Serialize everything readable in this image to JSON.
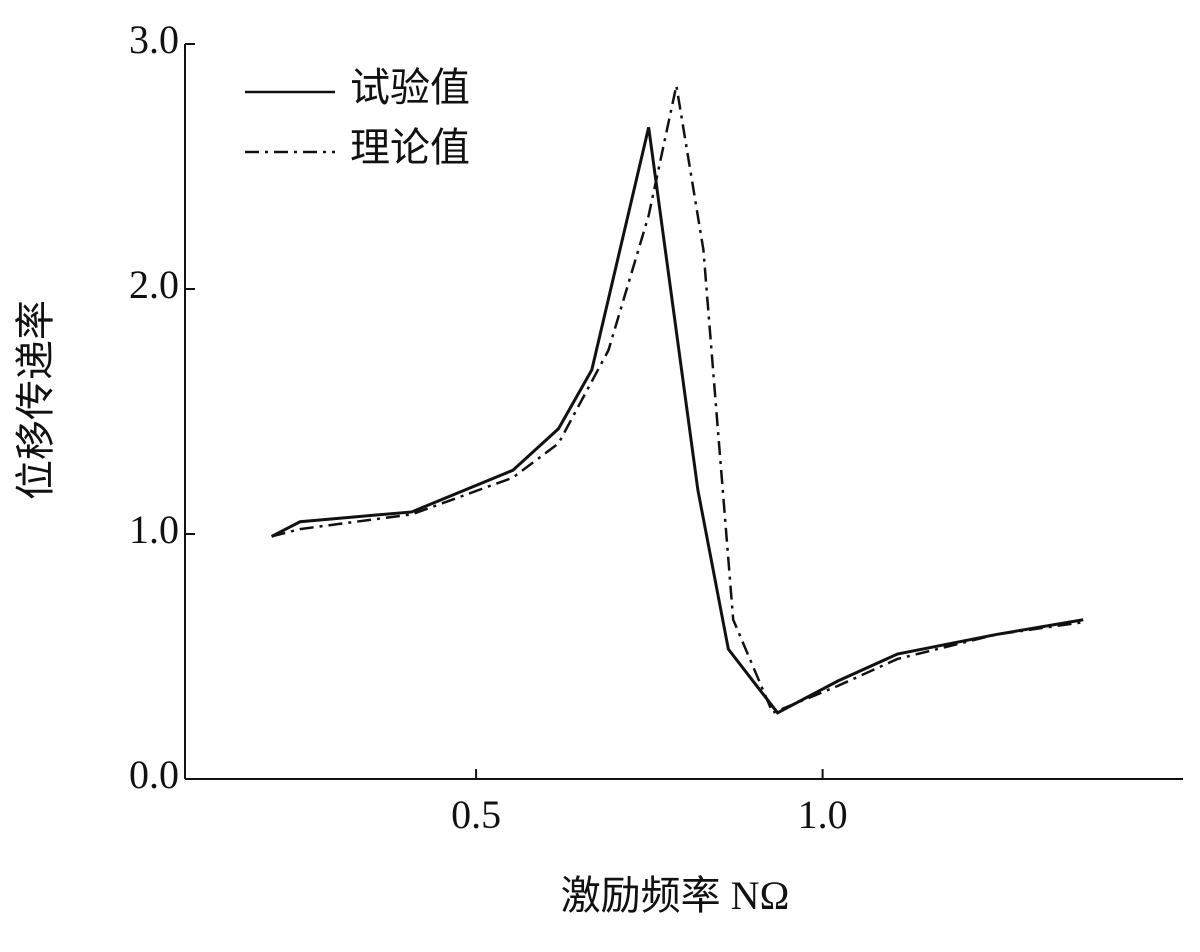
{
  "chart_data": {
    "type": "line",
    "xlabel": "激励频率 NΩ",
    "ylabel": "位移传递率",
    "xlim": [
      0.08,
      1.52
    ],
    "ylim": [
      0,
      3.0
    ],
    "xticks": [
      0.5,
      {
        "value": 1.0,
        "label": "1.0"
      }
    ],
    "yticks": [
      {
        "value": 0,
        "label": "0.0"
      },
      {
        "value": 1.0,
        "label": "1.0"
      },
      {
        "value": 2.0,
        "label": "2.0"
      },
      {
        "value": 3.0,
        "label": "3.0"
      }
    ],
    "legend": "upper-left",
    "series": [
      {
        "name": "试验值",
        "color": "#111111",
        "dash": "solid",
        "x": [
          0.205,
          0.246,
          0.407,
          0.553,
          0.619,
          0.667,
          0.749,
          0.82,
          0.864,
          0.935,
          1.022,
          1.108,
          1.251,
          1.376
        ],
        "values": [
          0.99,
          1.05,
          1.09,
          1.26,
          1.43,
          1.67,
          2.66,
          1.18,
          0.53,
          0.27,
          0.4,
          0.51,
          0.59,
          0.65
        ]
      },
      {
        "name": "理论值",
        "color": "#111111",
        "dash": "dashdot",
        "x": [
          0.205,
          0.246,
          0.407,
          0.553,
          0.619,
          0.691,
          0.749,
          0.789,
          0.828,
          0.871,
          0.928,
          1.022,
          1.108,
          1.251,
          1.376
        ],
        "values": [
          0.99,
          1.02,
          1.08,
          1.23,
          1.37,
          1.75,
          2.3,
          2.83,
          2.16,
          0.65,
          0.27,
          0.38,
          0.49,
          0.59,
          0.64
        ]
      }
    ]
  }
}
